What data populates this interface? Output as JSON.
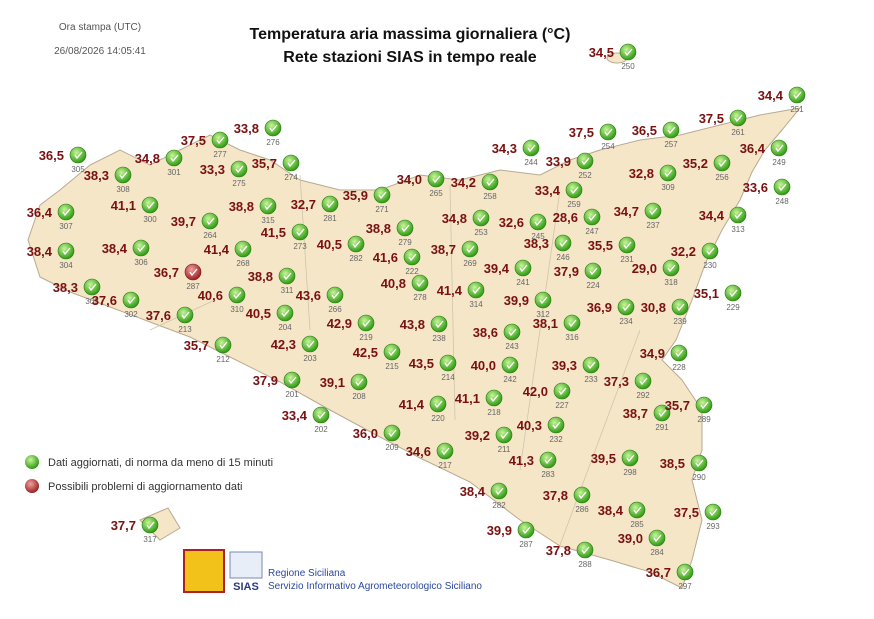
{
  "header": {
    "print_label": "Ora stampa (UTC)",
    "print_time": "26/08/2026 14:05:41",
    "title": "Temperatura aria massima giornaliera (°C)",
    "subtitle": "Rete stazioni SIAS in tempo reale"
  },
  "stations": [
    {
      "temp": "34,5",
      "id": "250"
    },
    {
      "temp": "34,4",
      "id": "251"
    },
    {
      "temp": "36,5",
      "id": "305"
    },
    {
      "temp": "37,5",
      "id": "277"
    },
    {
      "temp": "33,8",
      "id": "276"
    },
    {
      "temp": "34,8",
      "id": "301"
    },
    {
      "temp": "38,3",
      "id": "308"
    },
    {
      "temp": "33,3",
      "id": "275"
    },
    {
      "temp": "35,7",
      "id": "274"
    },
    {
      "temp": "36,4",
      "id": "307"
    },
    {
      "temp": "41,1",
      "id": "300"
    },
    {
      "temp": "39,7",
      "id": "264"
    },
    {
      "temp": "38,8",
      "id": "315"
    },
    {
      "temp": "32,7",
      "id": "281"
    },
    {
      "temp": "35,9",
      "id": "271"
    },
    {
      "temp": "34,0",
      "id": "265"
    },
    {
      "temp": "34,2",
      "id": "258"
    },
    {
      "temp": "34,3",
      "id": "244"
    },
    {
      "temp": "33,9",
      "id": "252"
    },
    {
      "temp": "37,5",
      "id": "254"
    },
    {
      "temp": "36,5",
      "id": "257"
    },
    {
      "temp": "37,5",
      "id": "261"
    },
    {
      "temp": "36,4",
      "id": "249"
    },
    {
      "temp": "32,8",
      "id": "309"
    },
    {
      "temp": "35,2",
      "id": "256"
    },
    {
      "temp": "33,4",
      "id": "259"
    },
    {
      "temp": "33,6",
      "id": "248"
    },
    {
      "temp": "38,4",
      "id": "304"
    },
    {
      "temp": "38,4",
      "id": "306"
    },
    {
      "temp": "41,4",
      "id": "268"
    },
    {
      "temp": "41,5",
      "id": "273"
    },
    {
      "temp": "40,5",
      "id": "282"
    },
    {
      "temp": "38,8",
      "id": "279"
    },
    {
      "temp": "34,8",
      "id": "253"
    },
    {
      "temp": "32,6",
      "id": "245"
    },
    {
      "temp": "28,6",
      "id": "247"
    },
    {
      "temp": "34,7",
      "id": "237"
    },
    {
      "temp": "34,4",
      "id": "313"
    },
    {
      "temp": "41,6",
      "id": "222"
    },
    {
      "temp": "38,7",
      "id": "269"
    },
    {
      "temp": "38,3",
      "id": "246"
    },
    {
      "temp": "35,5",
      "id": "231"
    },
    {
      "temp": "32,2",
      "id": "230"
    },
    {
      "temp": "36,7",
      "id": "287"
    },
    {
      "temp": "38,3",
      "id": "303"
    },
    {
      "temp": "37,6",
      "id": "302"
    },
    {
      "temp": "38,8",
      "id": "311"
    },
    {
      "temp": "40,8",
      "id": "278"
    },
    {
      "temp": "41,4",
      "id": "314"
    },
    {
      "temp": "39,4",
      "id": "241"
    },
    {
      "temp": "37,9",
      "id": "224"
    },
    {
      "temp": "29,0",
      "id": "318"
    },
    {
      "temp": "35,1",
      "id": "229"
    },
    {
      "temp": "40,6",
      "id": "310"
    },
    {
      "temp": "37,6",
      "id": "213"
    },
    {
      "temp": "40,5",
      "id": "204"
    },
    {
      "temp": "43,6",
      "id": "266"
    },
    {
      "temp": "39,9",
      "id": "312"
    },
    {
      "temp": "36,9",
      "id": "234"
    },
    {
      "temp": "30,8",
      "id": "239"
    },
    {
      "temp": "42,9",
      "id": "219"
    },
    {
      "temp": "43,8",
      "id": "238"
    },
    {
      "temp": "38,6",
      "id": "243"
    },
    {
      "temp": "38,1",
      "id": "316"
    },
    {
      "temp": "35,7",
      "id": "212"
    },
    {
      "temp": "42,3",
      "id": "203"
    },
    {
      "temp": "42,5",
      "id": "215"
    },
    {
      "temp": "43,5",
      "id": "214"
    },
    {
      "temp": "40,0",
      "id": "242"
    },
    {
      "temp": "39,3",
      "id": "233"
    },
    {
      "temp": "34,9",
      "id": "228"
    },
    {
      "temp": "37,9",
      "id": "201"
    },
    {
      "temp": "39,1",
      "id": "208"
    },
    {
      "temp": "37,3",
      "id": "292"
    },
    {
      "temp": "42,0",
      "id": "227"
    },
    {
      "temp": "41,4",
      "id": "220"
    },
    {
      "temp": "41,1",
      "id": "218"
    },
    {
      "temp": "38,7",
      "id": "291"
    },
    {
      "temp": "35,7",
      "id": "289"
    },
    {
      "temp": "33,4",
      "id": "202"
    },
    {
      "temp": "40,3",
      "id": "232"
    },
    {
      "temp": "36,0",
      "id": "209"
    },
    {
      "temp": "39,2",
      "id": "211"
    },
    {
      "temp": "34,6",
      "id": "217"
    },
    {
      "temp": "41,3",
      "id": "283"
    },
    {
      "temp": "39,5",
      "id": "298"
    },
    {
      "temp": "38,5",
      "id": "290"
    },
    {
      "temp": "38,4",
      "id": "282"
    },
    {
      "temp": "37,8",
      "id": "286"
    },
    {
      "temp": "38,4",
      "id": "285"
    },
    {
      "temp": "37,5",
      "id": "293"
    },
    {
      "temp": "37,7",
      "id": "317"
    },
    {
      "temp": "39,9",
      "id": "287"
    },
    {
      "temp": "39,0",
      "id": "284"
    },
    {
      "temp": "37,8",
      "id": "288"
    },
    {
      "temp": "36,7",
      "id": "297"
    }
  ],
  "legend": [
    "Dati aggiornati, di norma da meno di 15 minuti",
    "Possibili problemi di aggiornamento dati"
  ],
  "footer": {
    "logo_text": "SIAS",
    "org": "Regione Siciliana",
    "service": "Servizio Informativo Agrometeorologico Siciliano"
  }
}
